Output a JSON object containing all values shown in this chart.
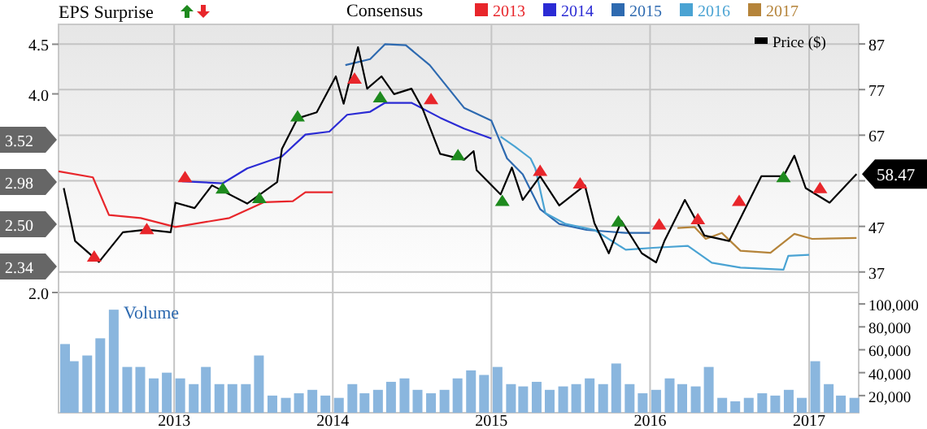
{
  "chart_data": [
    {
      "type": "line",
      "legend_title": "Consensus",
      "legend": "top",
      "grid": true,
      "tick_labels": "y",
      "annotations": [
        "EPS Surprise",
        "3.52",
        "2.98",
        "2.50",
        "2.34"
      ],
      "xlim": [
        "2012-04-10",
        "2017-04-25"
      ],
      "xticks": [
        {
          "value": "2013-01-01",
          "label": null
        },
        {
          "value": "2014-01-01",
          "label": null
        },
        {
          "value": "2015-01-01",
          "label": null
        },
        {
          "value": "2016-01-01",
          "label": null
        },
        {
          "value": "2017-01-01",
          "label": null
        }
      ],
      "ylim": [
        2.0,
        4.7
      ],
      "yticks": [
        {
          "value": 2,
          "label": "2.0"
        },
        {
          "value": 4,
          "label": "4.0"
        },
        {
          "value": 4.5,
          "label": "4.5"
        }
      ],
      "y2lim": [
        32.5,
        91.3
      ],
      "y2ticks": [
        {
          "value": 37,
          "label": "37"
        },
        {
          "value": 47,
          "label": "47"
        },
        {
          "value": 57,
          "label": null
        },
        {
          "value": 67,
          "label": "67"
        },
        {
          "value": 77,
          "label": "77"
        },
        {
          "value": 87,
          "label": "87"
        }
      ],
      "series": [
        {
          "name": "2013",
          "color": "#e8262b",
          "x": [
            "2012-04-10",
            "2012-06-28",
            "2012-08-04",
            "2012-10-16",
            "2013-01-04",
            "2013-05-08",
            "2013-07-27",
            "2013-10-01",
            "2013-10-30",
            "2014-01-01"
          ],
          "values": [
            3.22,
            3.16,
            2.78,
            2.75,
            2.66,
            2.75,
            2.91,
            2.92,
            3.01,
            3.01
          ]
        },
        {
          "name": "2014",
          "color": "#2b2bd4",
          "x": [
            "2013-01-19",
            "2013-04-23",
            "2013-06-18",
            "2013-09-06",
            "2013-10-30",
            "2013-12-24",
            "2014-02-03",
            "2014-03-28",
            "2014-05-01",
            "2014-07-01",
            "2014-09-05",
            "2014-10-30",
            "2015-01-01"
          ],
          "values": [
            3.12,
            3.1,
            3.25,
            3.37,
            3.59,
            3.62,
            3.79,
            3.82,
            3.91,
            3.91,
            3.76,
            3.65,
            3.55
          ]
        },
        {
          "name": "2015",
          "color": "#2e6ab0",
          "x": [
            "2014-01-30",
            "2014-03-28",
            "2014-05-01",
            "2014-06-18",
            "2014-08-12",
            "2014-10-30",
            "2015-01-01",
            "2015-02-06",
            "2015-03-14",
            "2015-04-23",
            "2015-06-06",
            "2015-08-08",
            "2015-11-06",
            "2016-01-01"
          ],
          "values": [
            4.29,
            4.35,
            4.5,
            4.49,
            4.29,
            3.86,
            3.73,
            3.35,
            3.19,
            2.84,
            2.69,
            2.63,
            2.6,
            2.6
          ]
        },
        {
          "name": "2016",
          "color": "#4aa3d3",
          "x": [
            "2015-01-22",
            "2015-02-24",
            "2015-04-01",
            "2015-04-12",
            "2015-05-05",
            "2015-06-21",
            "2015-08-26",
            "2015-11-06",
            "2016-01-08",
            "2016-03-28",
            "2016-05-22",
            "2016-07-27",
            "2016-11-03",
            "2016-11-14",
            "2017-01-01"
          ],
          "values": [
            3.57,
            3.47,
            3.35,
            3.25,
            2.8,
            2.69,
            2.63,
            2.43,
            2.45,
            2.47,
            2.3,
            2.25,
            2.23,
            2.37,
            2.38
          ]
        },
        {
          "name": "2017",
          "color": "#b5843a",
          "x": [
            "2016-03-04",
            "2016-04-12",
            "2016-05-08",
            "2016-06-14",
            "2016-07-27",
            "2016-10-04",
            "2016-11-28",
            "2017-01-08",
            "2017-04-20"
          ],
          "values": [
            2.65,
            2.66,
            2.54,
            2.6,
            2.42,
            2.4,
            2.59,
            2.54,
            2.55
          ]
        },
        {
          "name": "Price ($)",
          "color": "#000000",
          "axis": "y2",
          "x": [
            "2012-04-22",
            "2012-05-18",
            "2012-07-12",
            "2012-09-05",
            "2012-10-30",
            "2012-12-24",
            "2013-01-04",
            "2013-02-17",
            "2013-03-29",
            "2013-06-18",
            "2013-08-26",
            "2013-09-06",
            "2013-10-12",
            "2013-11-25",
            "2014-01-08",
            "2014-01-26",
            "2014-02-28",
            "2014-03-21",
            "2014-04-23",
            "2014-05-22",
            "2014-07-01",
            "2014-07-27",
            "2014-09-05",
            "2014-10-30",
            "2014-11-21",
            "2014-11-28",
            "2015-01-22",
            "2015-02-17",
            "2015-03-14",
            "2015-04-23",
            "2015-06-06",
            "2015-08-04",
            "2015-08-26",
            "2015-09-28",
            "2015-10-27",
            "2015-12-13",
            "2016-01-15",
            "2016-02-03",
            "2016-03-21",
            "2016-05-05",
            "2016-07-01",
            "2016-09-13",
            "2016-11-03",
            "2016-11-28",
            "2016-12-24",
            "2017-02-17",
            "2017-04-20"
          ],
          "values": [
            55.4,
            43.8,
            39.2,
            45.7,
            46.3,
            45.7,
            52.2,
            51,
            56,
            52,
            56.7,
            64,
            70.7,
            72,
            79.9,
            73.9,
            86.3,
            77.2,
            79.9,
            76,
            77.2,
            72.7,
            62.9,
            61.6,
            63.5,
            59.3,
            54,
            59.9,
            52.8,
            58,
            51.6,
            56,
            47.7,
            41.1,
            48.2,
            41.1,
            39.1,
            43.8,
            52.8,
            45,
            43.8,
            58,
            58,
            62.5,
            55.4,
            52.2,
            58.47
          ],
          "value_labels": [
            null,
            null,
            null,
            null,
            null,
            null,
            null,
            null,
            null,
            null,
            null,
            null,
            null,
            null,
            null,
            null,
            null,
            null,
            null,
            null,
            null,
            null,
            null,
            null,
            null,
            null,
            null,
            null,
            null,
            null,
            null,
            null,
            null,
            null,
            null,
            null,
            null,
            null,
            null,
            null,
            null,
            null,
            null,
            null,
            null,
            null,
            "58.47"
          ]
        },
        {
          "type": "scatter",
          "color": "#1e8a1e",
          "axis": "y2",
          "marker": "triangle",
          "x": [
            "2013-04-23",
            "2013-07-16",
            "2013-10-12",
            "2014-04-20",
            "2014-10-16",
            "2015-01-26",
            "2015-10-20",
            "2016-11-03"
          ],
          "values": [
            54.9,
            52.8,
            70.7,
            74.9,
            62.2,
            52.2,
            47.7,
            57.4
          ]
        },
        {
          "type": "scatter",
          "color": "#e8262b",
          "axis": "y2",
          "marker": "triangle",
          "x": [
            "2012-07-01",
            "2012-10-30",
            "2013-01-26",
            "2014-02-20",
            "2014-08-15",
            "2015-04-23",
            "2015-07-24",
            "2016-01-22",
            "2016-04-20",
            "2016-07-24",
            "2017-01-26"
          ],
          "values": [
            40,
            46,
            57.4,
            79,
            74.5,
            58.8,
            56,
            47,
            48.2,
            52.2,
            55
          ]
        }
      ]
    },
    {
      "type": "bar",
      "ylabel": "Volume",
      "grid": "x",
      "color": "#8ab6de",
      "xlim": [
        "2012-04-10",
        "2017-04-25"
      ],
      "xticks": [
        {
          "value": "2013-01-01",
          "label": "2013"
        },
        {
          "value": "2014-01-01",
          "label": "2014"
        },
        {
          "value": "2015-01-01",
          "label": "2015"
        },
        {
          "value": "2016-01-01",
          "label": "2016"
        },
        {
          "value": "2017-01-01",
          "label": "2017"
        }
      ],
      "ylim": [
        5000,
        110000
      ],
      "yticks": [
        {
          "value": 20000,
          "label": "20,000"
        },
        {
          "value": 40000,
          "label": "40,000"
        },
        {
          "value": 60000,
          "label": "60,000"
        },
        {
          "value": 80000,
          "label": "80,000"
        },
        {
          "value": 100000,
          "label": "100,000"
        }
      ],
      "x": [
        "2012-04-25",
        "2012-05-15",
        "2012-06-15",
        "2012-07-15",
        "2012-08-15",
        "2012-09-15",
        "2012-10-15",
        "2012-11-15",
        "2012-12-15",
        "2013-01-15",
        "2013-02-15",
        "2013-03-15",
        "2013-04-15",
        "2013-05-15",
        "2013-06-15",
        "2013-07-15",
        "2013-08-15",
        "2013-09-15",
        "2013-10-15",
        "2013-11-15",
        "2013-12-15",
        "2014-01-15",
        "2014-02-15",
        "2014-03-15",
        "2014-04-15",
        "2014-05-15",
        "2014-06-15",
        "2014-07-15",
        "2014-08-15",
        "2014-09-15",
        "2014-10-15",
        "2014-11-15",
        "2014-12-15",
        "2015-01-15",
        "2015-02-15",
        "2015-03-15",
        "2015-04-15",
        "2015-05-15",
        "2015-06-15",
        "2015-07-15",
        "2015-08-15",
        "2015-09-15",
        "2015-10-15",
        "2015-11-15",
        "2015-12-15",
        "2016-01-15",
        "2016-02-15",
        "2016-03-15",
        "2016-04-15",
        "2016-05-15",
        "2016-06-15",
        "2016-07-15",
        "2016-08-15",
        "2016-09-15",
        "2016-10-15",
        "2016-11-15",
        "2016-12-15",
        "2017-01-15",
        "2017-02-15",
        "2017-03-15",
        "2017-04-15"
      ],
      "values": [
        65000,
        50000,
        55000,
        70000,
        95000,
        45000,
        45000,
        35000,
        40000,
        35000,
        30000,
        45000,
        30000,
        30000,
        30000,
        55000,
        20000,
        18000,
        22000,
        25000,
        20000,
        18000,
        30000,
        22000,
        25000,
        32000,
        35000,
        25000,
        22000,
        25000,
        35000,
        42000,
        38000,
        45000,
        30000,
        28000,
        32000,
        25000,
        28000,
        30000,
        35000,
        30000,
        48000,
        30000,
        22000,
        25000,
        35000,
        30000,
        28000,
        45000,
        18000,
        15000,
        18000,
        22000,
        20000,
        25000,
        18000,
        50000,
        30000,
        20000,
        18000
      ]
    }
  ]
}
